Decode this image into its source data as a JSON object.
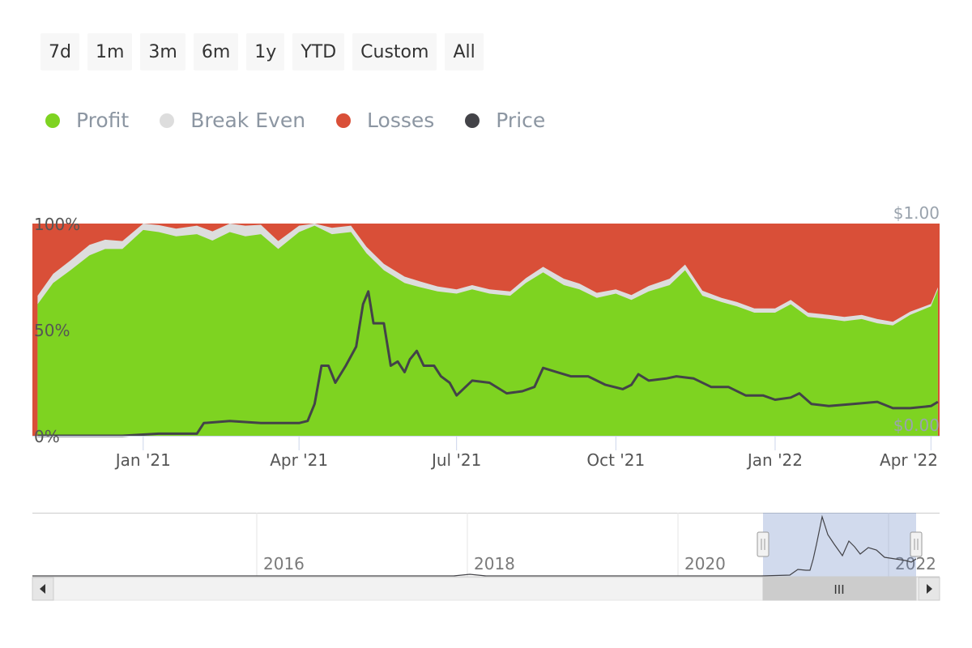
{
  "range_selector": {
    "buttons": [
      "7d",
      "1m",
      "3m",
      "6m",
      "1y",
      "YTD",
      "Custom",
      "All"
    ]
  },
  "legend": [
    {
      "label": "Profit",
      "color": "#7ed321"
    },
    {
      "label": "Break Even",
      "color": "#dddddd"
    },
    {
      "label": "Losses",
      "color": "#d94f38"
    },
    {
      "label": "Price",
      "color": "#434348"
    }
  ],
  "chart_data": {
    "type": "area",
    "stacking": "percent",
    "x_ticks": [
      "Jan '21",
      "Apr '21",
      "Jul '21",
      "Oct '21",
      "Jan '22",
      "Apr '22"
    ],
    "y_left_ticks": [
      "0%",
      "50%",
      "100%"
    ],
    "y_right_ticks": [
      "$0.00",
      "$1.00"
    ],
    "ylim_left": [
      0,
      100
    ],
    "ylim_right": [
      0,
      1
    ],
    "series": [
      {
        "name": "Profit",
        "type": "area",
        "dates": [
          "2020-11-01",
          "2020-11-10",
          "2020-11-20",
          "2020-12-01",
          "2020-12-10",
          "2020-12-20",
          "2021-01-01",
          "2021-01-10",
          "2021-01-20",
          "2021-02-01",
          "2021-02-10",
          "2021-02-20",
          "2021-03-01",
          "2021-03-10",
          "2021-03-20",
          "2021-04-01",
          "2021-04-10",
          "2021-04-20",
          "2021-05-01",
          "2021-05-10",
          "2021-05-20",
          "2021-06-01",
          "2021-06-10",
          "2021-06-20",
          "2021-07-01",
          "2021-07-10",
          "2021-07-20",
          "2021-08-01",
          "2021-08-10",
          "2021-08-20",
          "2021-09-01",
          "2021-09-10",
          "2021-09-20",
          "2021-10-01",
          "2021-10-10",
          "2021-10-20",
          "2021-11-01",
          "2021-11-10",
          "2021-11-20",
          "2021-12-01",
          "2021-12-10",
          "2021-12-20",
          "2022-01-01",
          "2022-01-10",
          "2022-01-20",
          "2022-02-01",
          "2022-02-10",
          "2022-02-20",
          "2022-03-01",
          "2022-03-10",
          "2022-03-20",
          "2022-04-01",
          "2022-04-05"
        ],
        "values": [
          62,
          72,
          78,
          85,
          88,
          88,
          97,
          96,
          94,
          95,
          92,
          96,
          94,
          95,
          88,
          96,
          99,
          95,
          96,
          86,
          78,
          72,
          70,
          68,
          67,
          69,
          67,
          66,
          72,
          77,
          71,
          69,
          65,
          67,
          64,
          68,
          71,
          78,
          66,
          63,
          61,
          58,
          58,
          62,
          56,
          55,
          54,
          55,
          53,
          52,
          57,
          61,
          69
        ]
      },
      {
        "name": "Break Even",
        "type": "area",
        "dates": [
          "2020-11-01",
          "2020-12-01",
          "2021-01-01",
          "2021-02-01",
          "2021-03-01",
          "2021-04-01",
          "2021-05-01",
          "2021-06-01",
          "2021-07-01",
          "2021-08-01",
          "2021-09-01",
          "2021-10-01",
          "2021-11-01",
          "2021-12-01",
          "2022-01-01",
          "2022-02-01",
          "2022-03-01",
          "2022-04-05"
        ],
        "values": [
          4,
          5,
          3,
          4,
          5,
          3,
          3,
          3,
          2,
          2,
          3,
          2,
          3,
          2,
          2,
          2,
          2,
          1
        ]
      },
      {
        "name": "Losses",
        "type": "area",
        "dates": [
          "2020-11-01",
          "2020-11-10",
          "2020-11-20",
          "2020-12-01",
          "2020-12-10",
          "2020-12-20",
          "2021-01-01",
          "2021-01-10",
          "2021-01-20",
          "2021-02-01",
          "2021-02-10",
          "2021-02-20",
          "2021-03-01",
          "2021-03-10",
          "2021-03-20",
          "2021-04-01",
          "2021-04-10",
          "2021-04-20",
          "2021-05-01",
          "2021-05-10",
          "2021-05-20",
          "2021-06-01",
          "2021-06-10",
          "2021-06-20",
          "2021-07-01",
          "2021-07-10",
          "2021-07-20",
          "2021-08-01",
          "2021-08-10",
          "2021-08-20",
          "2021-09-01",
          "2021-09-10",
          "2021-09-20",
          "2021-10-01",
          "2021-10-10",
          "2021-10-20",
          "2021-11-01",
          "2021-11-10",
          "2021-11-20",
          "2021-12-01",
          "2021-12-10",
          "2021-12-20",
          "2022-01-01",
          "2022-01-10",
          "2022-01-20",
          "2022-02-01",
          "2022-02-10",
          "2022-02-20",
          "2022-03-01",
          "2022-03-10",
          "2022-03-20",
          "2022-04-01",
          "2022-04-05"
        ],
        "values": [
          34,
          23,
          17,
          10,
          7,
          7,
          0,
          1,
          3,
          1,
          3,
          0,
          1,
          0,
          7,
          1,
          0,
          2,
          1,
          11,
          19,
          25,
          28,
          30,
          31,
          29,
          31,
          32,
          26,
          21,
          26,
          28,
          32,
          31,
          34,
          30,
          26,
          19,
          31,
          35,
          37,
          40,
          40,
          36,
          42,
          43,
          44,
          43,
          45,
          46,
          41,
          38,
          30
        ]
      },
      {
        "name": "Price",
        "type": "line",
        "dates": [
          "2020-11-01",
          "2020-12-01",
          "2020-12-20",
          "2021-01-10",
          "2021-01-20",
          "2021-02-01",
          "2021-02-05",
          "2021-02-20",
          "2021-03-10",
          "2021-03-25",
          "2021-04-01",
          "2021-04-06",
          "2021-04-10",
          "2021-04-14",
          "2021-04-18",
          "2021-04-22",
          "2021-04-28",
          "2021-05-04",
          "2021-05-08",
          "2021-05-11",
          "2021-05-14",
          "2021-05-20",
          "2021-05-24",
          "2021-05-28",
          "2021-06-01",
          "2021-06-04",
          "2021-06-08",
          "2021-06-12",
          "2021-06-18",
          "2021-06-22",
          "2021-06-27",
          "2021-07-01",
          "2021-07-10",
          "2021-07-20",
          "2021-07-30",
          "2021-08-08",
          "2021-08-15",
          "2021-08-20",
          "2021-08-28",
          "2021-09-05",
          "2021-09-15",
          "2021-09-25",
          "2021-10-05",
          "2021-10-10",
          "2021-10-14",
          "2021-10-20",
          "2021-10-30",
          "2021-11-05",
          "2021-11-15",
          "2021-11-25",
          "2021-12-05",
          "2021-12-15",
          "2021-12-25",
          "2022-01-01",
          "2022-01-10",
          "2022-01-15",
          "2022-01-22",
          "2022-02-01",
          "2022-02-15",
          "2022-03-01",
          "2022-03-10",
          "2022-03-20",
          "2022-04-01",
          "2022-04-05"
        ],
        "values": [
          0.0,
          0.0,
          0.0,
          0.01,
          0.01,
          0.01,
          0.06,
          0.07,
          0.06,
          0.06,
          0.06,
          0.07,
          0.15,
          0.33,
          0.33,
          0.25,
          0.33,
          0.42,
          0.62,
          0.68,
          0.53,
          0.53,
          0.33,
          0.35,
          0.3,
          0.36,
          0.4,
          0.33,
          0.33,
          0.28,
          0.25,
          0.19,
          0.26,
          0.25,
          0.2,
          0.21,
          0.23,
          0.32,
          0.3,
          0.28,
          0.28,
          0.24,
          0.22,
          0.24,
          0.29,
          0.26,
          0.27,
          0.28,
          0.27,
          0.23,
          0.23,
          0.19,
          0.19,
          0.17,
          0.18,
          0.2,
          0.15,
          0.14,
          0.15,
          0.16,
          0.13,
          0.13,
          0.14,
          0.16
        ]
      }
    ]
  },
  "navigator": {
    "year_labels": [
      "2016",
      "2018",
      "2020",
      "2022"
    ],
    "handle_glyph": "III"
  }
}
